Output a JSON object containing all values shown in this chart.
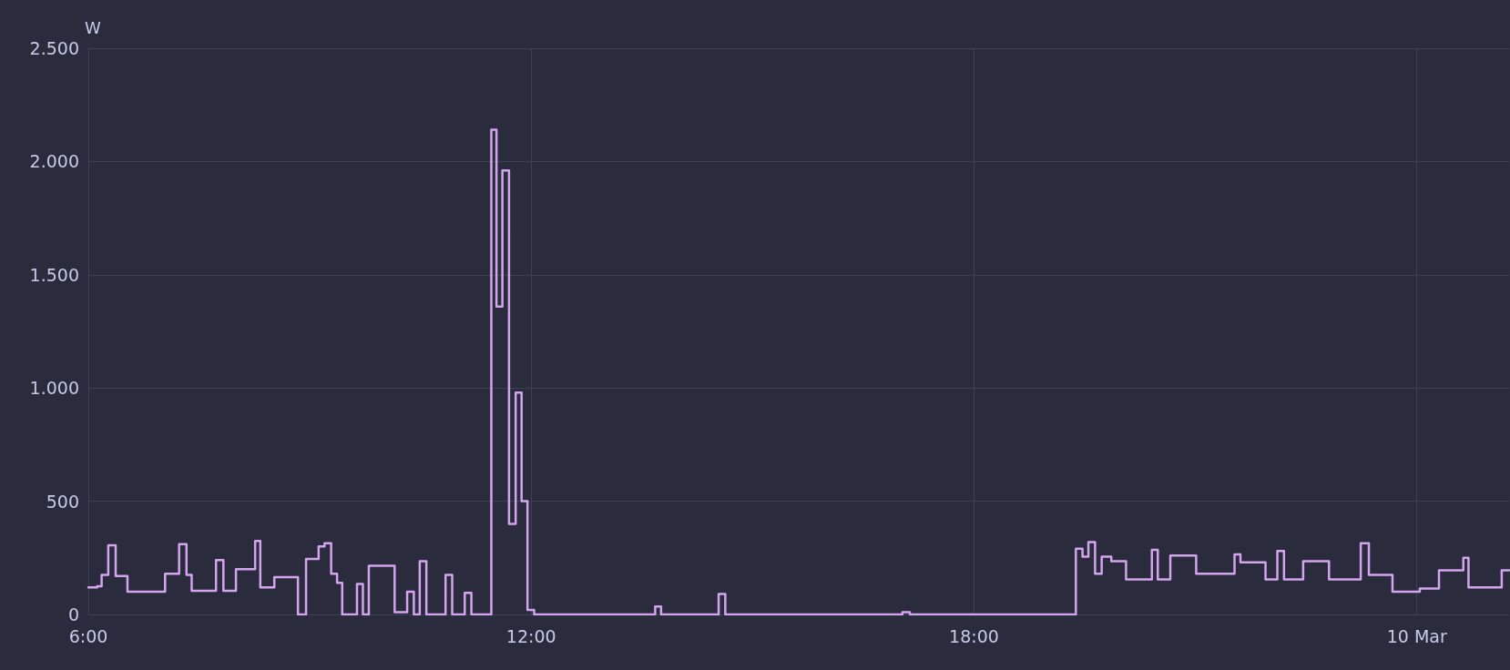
{
  "chart_data": {
    "type": "step",
    "ylabel": "W",
    "x": [
      6.0,
      6.12,
      6.18,
      6.27,
      6.37,
      6.53,
      7.04,
      7.23,
      7.33,
      7.4,
      7.73,
      7.83,
      8.0,
      8.26,
      8.33,
      8.52,
      8.84,
      8.95,
      9.12,
      9.2,
      9.29,
      9.37,
      9.44,
      9.64,
      9.72,
      9.8,
      10.15,
      10.32,
      10.41,
      10.49,
      10.58,
      10.84,
      10.93,
      11.1,
      11.19,
      11.46,
      11.53,
      11.61,
      11.7,
      11.79,
      11.87,
      11.95,
      12.04,
      13.68,
      13.76,
      14.54,
      14.63,
      17.03,
      17.13,
      19.38,
      19.47,
      19.55,
      19.64,
      19.73,
      19.86,
      20.06,
      20.41,
      20.49,
      20.66,
      21.01,
      21.53,
      21.61,
      21.95,
      22.11,
      22.2,
      22.46,
      22.81,
      23.24,
      23.35,
      23.67,
      24.04,
      24.3,
      24.63,
      24.7,
      25.15,
      25.25
    ],
    "series": [
      {
        "color": "#d4a5ee",
        "values": [
          120,
          125,
          175,
          305,
          170,
          100,
          180,
          310,
          175,
          105,
          240,
          105,
          200,
          325,
          120,
          165,
          0,
          245,
          300,
          315,
          180,
          140,
          0,
          135,
          0,
          215,
          10,
          100,
          0,
          235,
          0,
          175,
          0,
          95,
          0,
          2140,
          1360,
          1960,
          400,
          980,
          500,
          20,
          0,
          35,
          0,
          90,
          0,
          10,
          0,
          290,
          255,
          320,
          180,
          255,
          235,
          155,
          285,
          155,
          260,
          180,
          265,
          230,
          155,
          280,
          155,
          235,
          155,
          315,
          175,
          100,
          115,
          195,
          250,
          120,
          195,
          195
        ]
      }
    ],
    "xlim": [
      6,
      25.25
    ],
    "xticks": [
      {
        "value": 6,
        "label": "6:00"
      },
      {
        "value": 12,
        "label": "12:00"
      },
      {
        "value": 18,
        "label": "18:00"
      },
      {
        "value": 24,
        "label": "10 Mar"
      }
    ],
    "ylim": [
      0,
      2500
    ],
    "yticks": [
      0,
      500,
      {
        "value": 1000,
        "label": "1.000"
      },
      {
        "value": 1500,
        "label": "1.500"
      },
      {
        "value": 2000,
        "label": "2.000"
      },
      {
        "value": 2500,
        "label": "2.500"
      }
    ],
    "grid": true,
    "line_style": "solid",
    "marker": "none"
  }
}
